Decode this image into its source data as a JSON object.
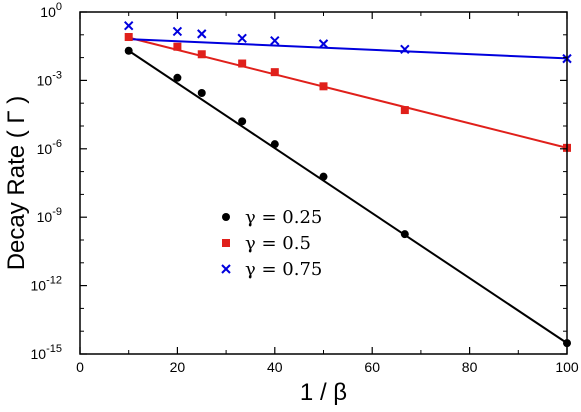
{
  "chart_data": {
    "type": "scatter",
    "xlabel": "1 / β",
    "ylabel": "Decay Rate ( Γ )",
    "xlim": [
      0,
      100
    ],
    "ylim": [
      1e-15,
      1
    ],
    "yscale": "log",
    "grid": false,
    "legend_position": "center-left",
    "x_ticks": [
      0,
      20,
      40,
      60,
      80,
      100
    ],
    "x_tick_labels": [
      "0",
      "20",
      "40",
      "60",
      "80",
      "100"
    ],
    "y_ticks": [
      1e-15,
      1e-12,
      1e-09,
      1e-06,
      0.001,
      1
    ],
    "y_tick_labels": [
      {
        "base": "10",
        "exp": "-15"
      },
      {
        "base": "10",
        "exp": "-12"
      },
      {
        "base": "10",
        "exp": "-9"
      },
      {
        "base": "10",
        "exp": "-6"
      },
      {
        "base": "10",
        "exp": "-3"
      },
      {
        "base": "10",
        "exp": "0"
      }
    ],
    "series": [
      {
        "name": "γ = 0.25",
        "marker": "circle",
        "color": "#000000",
        "points": [
          {
            "x": 10,
            "y": 0.02
          },
          {
            "x": 20,
            "y": 0.0013
          },
          {
            "x": 25,
            "y": 0.00028
          },
          {
            "x": 33.3,
            "y": 1.6e-05
          },
          {
            "x": 40,
            "y": 1.6e-06
          },
          {
            "x": 50,
            "y": 6e-08
          },
          {
            "x": 66.7,
            "y": 1.8e-10
          },
          {
            "x": 100,
            "y": 3e-15
          }
        ],
        "fit_line": [
          {
            "x": 10,
            "y": 0.02
          },
          {
            "x": 100,
            "y": 3e-15
          }
        ]
      },
      {
        "name": "γ = 0.5",
        "marker": "square",
        "color": "#e0201b",
        "points": [
          {
            "x": 10,
            "y": 0.08
          },
          {
            "x": 20,
            "y": 0.03
          },
          {
            "x": 25,
            "y": 0.014
          },
          {
            "x": 33.3,
            "y": 0.0055
          },
          {
            "x": 40,
            "y": 0.0023
          },
          {
            "x": 50,
            "y": 0.00055
          },
          {
            "x": 66.7,
            "y": 5e-05
          },
          {
            "x": 100,
            "y": 1.1e-06
          }
        ],
        "fit_line": [
          {
            "x": 10,
            "y": 0.075
          },
          {
            "x": 100,
            "y": 1.1e-06
          }
        ]
      },
      {
        "name": "γ = 0.75",
        "marker": "x",
        "color": "#0000dd",
        "points": [
          {
            "x": 10,
            "y": 0.25
          },
          {
            "x": 20,
            "y": 0.14
          },
          {
            "x": 25,
            "y": 0.11
          },
          {
            "x": 33.3,
            "y": 0.07
          },
          {
            "x": 40,
            "y": 0.055
          },
          {
            "x": 50,
            "y": 0.04
          },
          {
            "x": 66.7,
            "y": 0.023
          },
          {
            "x": 100,
            "y": 0.009
          }
        ],
        "fit_line": [
          {
            "x": 10,
            "y": 0.065
          },
          {
            "x": 100,
            "y": 0.0092
          }
        ]
      }
    ]
  }
}
